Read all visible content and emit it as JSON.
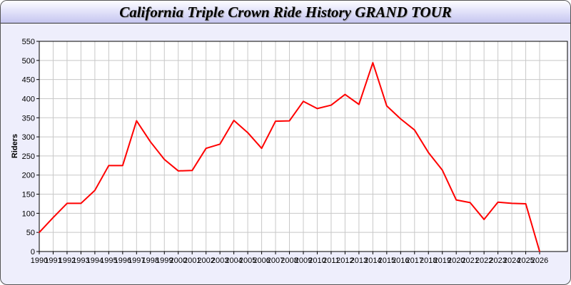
{
  "chart_data": {
    "type": "line",
    "title": "California Triple Crown Ride History GRAND TOUR",
    "xlabel": "",
    "ylabel": "Riders",
    "ylim": [
      0,
      550
    ],
    "xlim": [
      1990,
      2028
    ],
    "yticks": [
      0,
      50,
      100,
      150,
      200,
      250,
      300,
      350,
      400,
      450,
      500,
      550
    ],
    "grid": true,
    "line_color": "#ff0000",
    "background_color": "#eeeefc",
    "x": [
      1990,
      1991,
      1992,
      1993,
      1994,
      1995,
      1996,
      1997,
      1998,
      1999,
      2000,
      2001,
      2002,
      2003,
      2004,
      2005,
      2006,
      2007,
      2008,
      2009,
      2010,
      2011,
      2012,
      2013,
      2014,
      2015,
      2016,
      2017,
      2018,
      2019,
      2020,
      2021,
      2022,
      2023,
      2024,
      2025,
      2026
    ],
    "series": [
      {
        "values": [
          50,
          89,
          126,
          126,
          160,
          225,
          225,
          342,
          287,
          241,
          211,
          212,
          270,
          281,
          343,
          311,
          270,
          341,
          342,
          393,
          374,
          383,
          411,
          385,
          494,
          381,
          347,
          318,
          259,
          213,
          135,
          128,
          84,
          129,
          126,
          125,
          0
        ]
      }
    ]
  }
}
